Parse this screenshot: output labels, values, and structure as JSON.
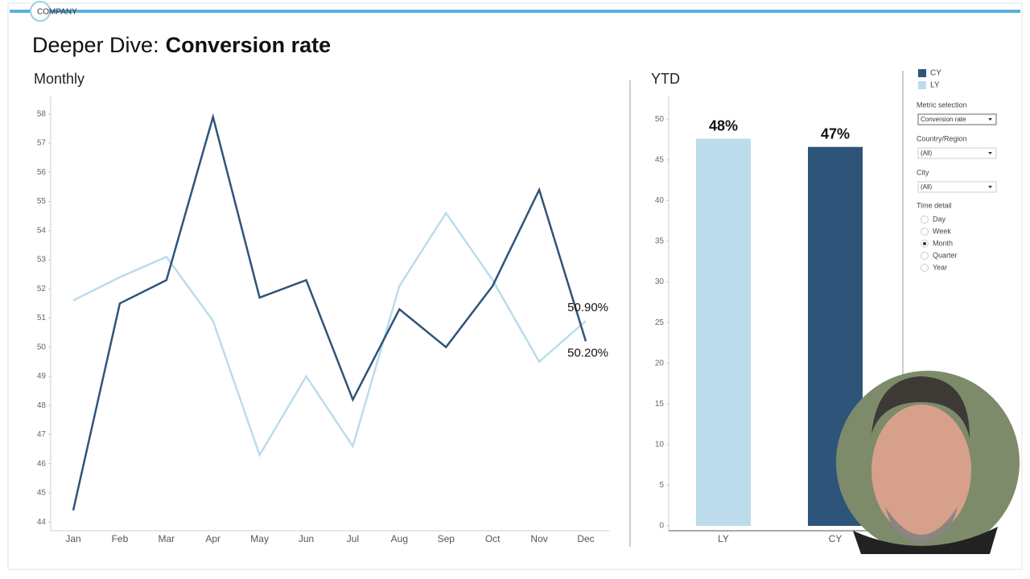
{
  "header": {
    "logo": "COMPANY",
    "title_prefix": "Deeper Dive:",
    "title_bold": "Conversion rate"
  },
  "chart_data": [
    {
      "type": "line",
      "title": "Monthly",
      "categories": [
        "Jan",
        "Feb",
        "Mar",
        "Apr",
        "May",
        "Jun",
        "Jul",
        "Aug",
        "Sep",
        "Oct",
        "Nov",
        "Dec"
      ],
      "series": [
        {
          "name": "CY",
          "color": "#2f5479",
          "values": [
            44.4,
            51.5,
            52.3,
            57.9,
            51.7,
            52.3,
            48.2,
            51.3,
            50.0,
            52.1,
            55.4,
            50.2
          ],
          "value_labels": [
            null,
            null,
            null,
            null,
            null,
            null,
            null,
            null,
            null,
            null,
            null,
            "50.20%"
          ]
        },
        {
          "name": "LY",
          "color": "#bcdcec",
          "values": [
            51.6,
            52.4,
            53.1,
            50.9,
            46.3,
            49.0,
            46.6,
            52.1,
            54.6,
            52.3,
            49.5,
            50.9
          ],
          "value_labels": [
            null,
            null,
            null,
            null,
            null,
            null,
            null,
            null,
            null,
            null,
            null,
            "50.90%"
          ]
        }
      ],
      "ylim": [
        43.7,
        58.6
      ],
      "yticks": [
        44,
        45,
        46,
        47,
        48,
        49,
        50,
        51,
        52,
        53,
        54,
        55,
        56,
        57,
        58
      ]
    },
    {
      "type": "bar",
      "title": "YTD",
      "categories": [
        "LY",
        "CY"
      ],
      "values": [
        47.6,
        46.6
      ],
      "value_labels": [
        "48%",
        "47%"
      ],
      "colors": [
        "#bcdcec",
        "#2f5479"
      ],
      "ylim": [
        -0.6,
        52.8
      ],
      "yticks": [
        0,
        5,
        10,
        15,
        20,
        25,
        30,
        35,
        40,
        45,
        50
      ]
    }
  ],
  "filters": [
    {
      "label": "Metric selection",
      "value": "Conversion rate"
    },
    {
      "label": "Country/Region",
      "value": "(All)"
    },
    {
      "label": "City",
      "value": "(All)"
    }
  ],
  "time_detail": {
    "label": "Time detail",
    "options": [
      "Day",
      "Week",
      "Month",
      "Quarter",
      "Year"
    ],
    "selected": 2
  }
}
